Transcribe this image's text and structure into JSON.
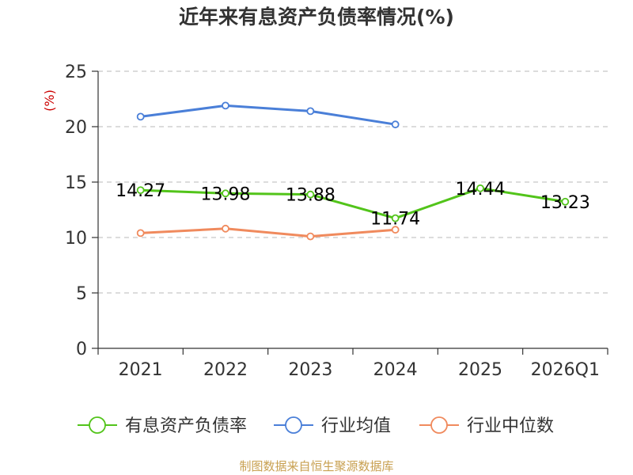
{
  "chart_data": {
    "type": "line",
    "title": "近年来有息资产负债率情况(%)",
    "ylabel": "(%)",
    "categories": [
      "2021",
      "2022",
      "2023",
      "2024",
      "2025",
      "2026Q1"
    ],
    "ylim": [
      0,
      25
    ],
    "yticks": [
      0,
      5,
      10,
      15,
      20,
      25
    ],
    "grid": true,
    "legend_position": "bottom",
    "series": [
      {
        "name": "有息资产负债率",
        "color": "#52c41a",
        "values": [
          14.27,
          13.98,
          13.88,
          11.74,
          14.44,
          13.23
        ],
        "labels": [
          "14.27",
          "13.98",
          "13.88",
          "11.74",
          "14.44",
          "13.23"
        ]
      },
      {
        "name": "行业均值",
        "color": "#4a7fd8",
        "values": [
          20.9,
          21.9,
          21.4,
          20.2,
          null,
          null
        ]
      },
      {
        "name": "行业中位数",
        "color": "#f08a5d",
        "values": [
          10.4,
          10.8,
          10.1,
          10.7,
          null,
          null
        ]
      }
    ]
  },
  "source": "制图数据来自恒生聚源数据库"
}
